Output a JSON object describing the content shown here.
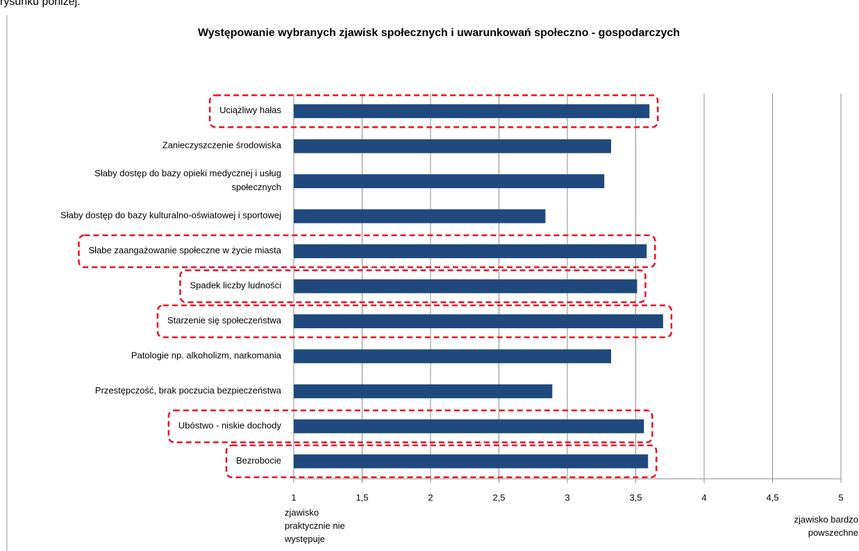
{
  "page_text": "rysunku poniżej.",
  "chart_data": {
    "type": "bar",
    "orientation": "horizontal",
    "title": "Występowanie wybranych zjawisk społecznych i uwarunkowań społeczno - gospodarczych",
    "categories": [
      "Uciążliwy hałas",
      "Zanieczyszczenie środowiska",
      "Słaby dostęp do bazy opieki medycznej i usług społecznych",
      "Słaby dostęp do bazy kulturalno-oświatowej  i sportowej",
      "Słabe zaangażowanie  społeczne w życie miasta",
      "Spadek liczby  ludności",
      "Starzenie się społeczeństwa",
      "Patologie np. alkoholizm,  narkomania",
      "Przestępczość, brak poczucia bezpieczeństwa",
      "Ubóstwo - niskie dochody",
      "Bezrobocie"
    ],
    "values": [
      3.6,
      3.32,
      3.27,
      2.84,
      3.58,
      3.51,
      3.7,
      3.32,
      2.89,
      3.56,
      3.59
    ],
    "highlighted": [
      true,
      false,
      false,
      false,
      true,
      true,
      true,
      false,
      false,
      true,
      true
    ],
    "color": "#1f497d",
    "xlim": [
      1,
      5
    ],
    "xticks": [
      1,
      {
        "value": 1.5,
        "label": "1,5"
      },
      2,
      {
        "value": 2.5,
        "label": "2,5"
      },
      3,
      {
        "value": 3.5,
        "label": "3,5"
      },
      4,
      {
        "value": 4.5,
        "label": "4,5"
      },
      5
    ],
    "grid": true,
    "annotations": [
      "zjawisko praktycznie nie występuje",
      "zjawisko bardzo powszechne"
    ]
  }
}
